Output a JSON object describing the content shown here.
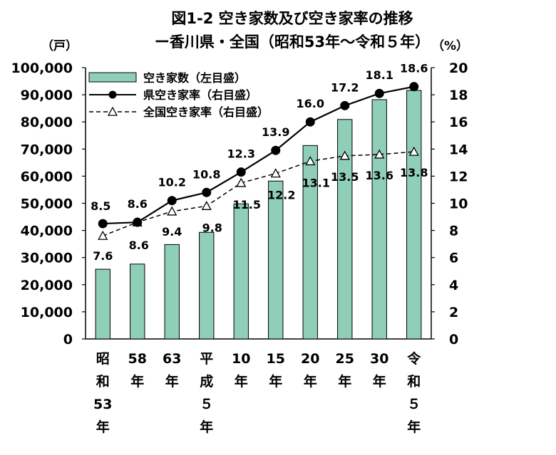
{
  "chart_data": {
    "type": "bar",
    "title": "図1-2 空き家数及び空き家率の推移",
    "subtitle": "ー香川県・全国（昭和53年～令和５年）",
    "left_unit": "（戸）",
    "right_unit": "（%）",
    "categories": [
      "昭和53年",
      "58年",
      "63年",
      "平成５年",
      "10年",
      "15年",
      "20年",
      "25年",
      "30年",
      "令和５年"
    ],
    "ylim_left": [
      0,
      100000
    ],
    "yticks_left": [
      "0",
      "10,000",
      "20,000",
      "30,000",
      "40,000",
      "50,000",
      "60,000",
      "70,000",
      "80,000",
      "90,000",
      "100,000"
    ],
    "ylim_right": [
      0,
      20
    ],
    "yticks_right": [
      "0",
      "2",
      "4",
      "6",
      "8",
      "10",
      "12",
      "14",
      "16",
      "18",
      "20"
    ],
    "series": [
      {
        "name": "空き家数（左目盛）",
        "type": "bar",
        "axis": "left",
        "values": [
          25700,
          27600,
          34800,
          39300,
          49800,
          58200,
          71300,
          80900,
          88200,
          91600
        ],
        "color": "#8fcfb8"
      },
      {
        "name": "県空き家率（右目盛）",
        "type": "line",
        "axis": "right",
        "values": [
          8.5,
          8.6,
          10.2,
          10.8,
          12.3,
          13.9,
          16.0,
          17.2,
          18.1,
          18.6
        ],
        "labels": [
          "8.5",
          "8.6",
          "10.2",
          "10.8",
          "12.3",
          "13.9",
          "16.0",
          "17.2",
          "18.1",
          "18.6"
        ],
        "color": "#000000"
      },
      {
        "name": "全国空き家率（右目盛）",
        "type": "line",
        "axis": "right",
        "values": [
          7.6,
          8.6,
          9.4,
          9.8,
          11.5,
          12.2,
          13.1,
          13.5,
          13.6,
          13.8
        ],
        "labels": [
          "7.6",
          "8.6",
          "9.4",
          "9.8",
          "11.5",
          "12.2",
          "13.1",
          "13.5",
          "13.6",
          "13.8"
        ],
        "color": "#000000"
      }
    ],
    "legend_position": "top-left",
    "grid": false
  }
}
